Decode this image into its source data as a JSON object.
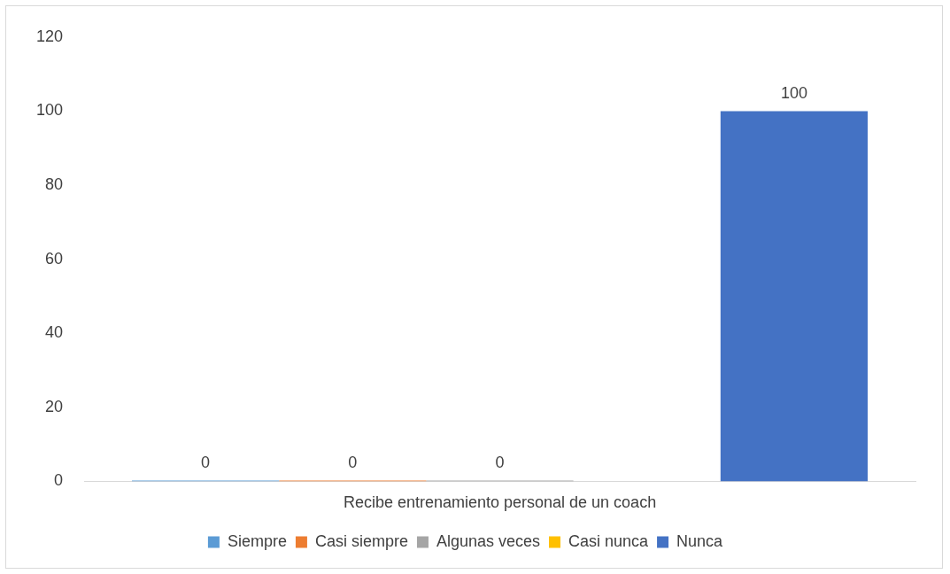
{
  "chart_data": {
    "type": "bar",
    "categories": [
      "Recibe entrenamiento personal de un coach"
    ],
    "series": [
      {
        "name": "Siempre",
        "color": "#5b9bd5",
        "values": [
          0
        ]
      },
      {
        "name": "Casi siempre",
        "color": "#ed7d31",
        "values": [
          0
        ]
      },
      {
        "name": "Algunas veces",
        "color": "#a5a5a5",
        "values": [
          0
        ]
      },
      {
        "name": "Casi nunca",
        "color": "#ffc000",
        "values": [
          null
        ]
      },
      {
        "name": "Nunca",
        "color": "#4472c4",
        "values": [
          100
        ]
      }
    ],
    "ylim": [
      0,
      120
    ],
    "yticks": [
      0,
      20,
      40,
      60,
      80,
      100,
      120
    ],
    "grid": false,
    "legend": "bottom",
    "data_labels": true
  }
}
